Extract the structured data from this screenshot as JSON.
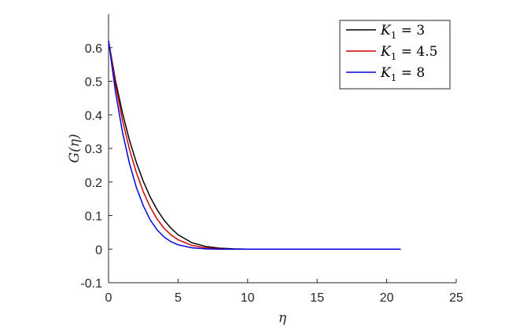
{
  "chart_data": {
    "type": "line",
    "title": "",
    "xlabel": "η",
    "ylabel": "G(η)",
    "xlim": [
      0,
      25
    ],
    "ylim": [
      -0.1,
      0.7
    ],
    "xticks": [
      0,
      5,
      10,
      15,
      20,
      25
    ],
    "yticks": [
      -0.1,
      0,
      0.1,
      0.2,
      0.3,
      0.4,
      0.5,
      0.6
    ],
    "xtick_labels": [
      "0",
      "5",
      "10",
      "15",
      "20",
      "25"
    ],
    "ytick_labels": [
      "-0.1",
      "0",
      "0.1",
      "0.2",
      "0.3",
      "0.4",
      "0.5",
      "0.6"
    ],
    "grid": false,
    "legend_position": "top-right",
    "series": [
      {
        "name": "K1 = 3",
        "legend_parts": {
          "base": "K",
          "sub": "1",
          "rest": " = 3"
        },
        "color": "#000000",
        "x": [
          0,
          0.5,
          1,
          1.5,
          2,
          2.5,
          3,
          3.5,
          4,
          4.5,
          5,
          6,
          7,
          8,
          9,
          10,
          12,
          15,
          18,
          21
        ],
        "y": [
          0.62,
          0.502,
          0.406,
          0.325,
          0.258,
          0.202,
          0.155,
          0.117,
          0.086,
          0.062,
          0.043,
          0.019,
          0.008,
          0.003,
          0.001,
          0.0,
          0.0,
          0.0,
          0.0,
          0.0
        ]
      },
      {
        "name": "K1 = 4.5",
        "legend_parts": {
          "base": "K",
          "sub": "1",
          "rest": " = 4.5"
        },
        "color": "#d40000",
        "x": [
          0,
          0.5,
          1,
          1.5,
          2,
          2.5,
          3,
          3.5,
          4,
          4.5,
          5,
          6,
          7,
          8,
          9,
          10,
          12,
          15,
          18,
          21
        ],
        "y": [
          0.62,
          0.49,
          0.385,
          0.298,
          0.228,
          0.171,
          0.125,
          0.089,
          0.062,
          0.042,
          0.028,
          0.011,
          0.004,
          0.001,
          0.0,
          0.0,
          0.0,
          0.0,
          0.0,
          0.0
        ]
      },
      {
        "name": "K1 = 8",
        "legend_parts": {
          "base": "K",
          "sub": "1",
          "rest": " = 8"
        },
        "color": "#0000dd",
        "x": [
          0,
          0.5,
          1,
          1.5,
          2,
          2.5,
          3,
          3.5,
          4,
          4.5,
          5,
          6,
          7,
          8,
          9,
          10,
          12,
          15,
          18,
          21
        ],
        "y": [
          0.62,
          0.468,
          0.349,
          0.256,
          0.184,
          0.129,
          0.087,
          0.057,
          0.036,
          0.022,
          0.013,
          0.004,
          0.001,
          0.0,
          0.0,
          0.0,
          0.0,
          0.0,
          0.0,
          0.0
        ]
      }
    ]
  }
}
